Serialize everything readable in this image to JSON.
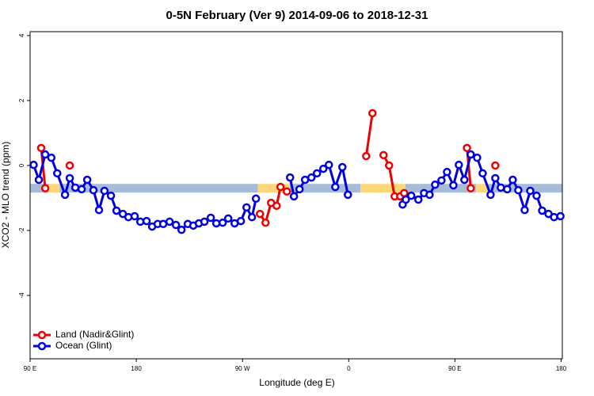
{
  "chart_data": {
    "type": "line",
    "title": "0-5N February (Ver 9)   2014-09-06 to 2018-12-31",
    "xlabel": "Longitude (deg E)",
    "ylabel": "XCO2 - MLO trend (ppm)",
    "xlim": [
      90,
      541
    ],
    "ylim": [
      -5.95,
      4.12
    ],
    "xticks": [
      {
        "value": 90,
        "label": "90 E"
      },
      {
        "value": 180,
        "label": "180"
      },
      {
        "value": 270,
        "label": "90 W"
      },
      {
        "value": 360,
        "label": "0"
      },
      {
        "value": 450,
        "label": "90 E"
      },
      {
        "value": 540,
        "label": "180"
      }
    ],
    "yticks": [
      4,
      2,
      0,
      -2,
      -4
    ],
    "legend": "bottom-left",
    "band": {
      "value": -0.7,
      "segments": [
        {
          "from": 90,
          "to": 106,
          "color": "#a8bcd8"
        },
        {
          "from": 106,
          "to": 115,
          "color": "#fdd87a"
        },
        {
          "from": 115,
          "to": 283,
          "color": "#a8bcd8"
        },
        {
          "from": 283,
          "to": 310,
          "color": "#fdd87a"
        },
        {
          "from": 310,
          "to": 370,
          "color": "#a8bcd8"
        },
        {
          "from": 370,
          "to": 408,
          "color": "#fdd87a"
        },
        {
          "from": 408,
          "to": 468,
          "color": "#a8bcd8"
        },
        {
          "from": 468,
          "to": 478,
          "color": "#fdd87a"
        },
        {
          "from": 478,
          "to": 541,
          "color": "#a8bcd8"
        }
      ]
    },
    "series": [
      {
        "name": "Land (Nadir&Glint)",
        "color": "#ee0000",
        "x": [
          99.4,
          102.8,
          null,
          123.6,
          null,
          284.8,
          289.5,
          294.2,
          298.9,
          302.2,
          307.6,
          null,
          374.8,
          380.1,
          null,
          389.5,
          394.2,
          398.9,
          403.6,
          407,
          null,
          460.2,
          463.4,
          null,
          484.2
        ],
        "values": [
          0.54,
          -0.7,
          null,
          0,
          null,
          -1.49,
          -1.76,
          -1.15,
          -1.24,
          -0.66,
          -0.8,
          null,
          0.29,
          1.61,
          null,
          0.32,
          0,
          -0.95,
          -0.95,
          -0.85,
          null,
          0.54,
          -0.7,
          null,
          0
        ]
      },
      {
        "name": "Ocean (Glint)",
        "color": "#0000dd",
        "x": [
          93,
          97.4,
          102.8,
          108,
          113,
          119.6,
          123.6,
          128.3,
          133.7,
          138.4,
          143.7,
          148.4,
          153,
          158.5,
          163.2,
          168.6,
          173.3,
          178.6,
          183.4,
          188.7,
          193.4,
          198.1,
          202.8,
          208.2,
          213.6,
          218.3,
          223.6,
          228.3,
          233,
          237.7,
          243.1,
          247.8,
          253.2,
          257.9,
          263.3,
          268.6,
          273.4,
          278,
          281.4,
          null,
          310.3,
          313.6,
          318.3,
          323,
          328.4,
          333.1,
          338.5,
          343.2,
          348.6,
          354.6,
          359.3,
          null,
          405.7,
          408.4,
          413,
          419,
          423.8,
          428.5,
          433.2,
          438.6,
          443.3,
          448.7,
          453.3,
          458,
          463.4,
          468.8,
          473.5,
          480.2,
          484.2,
          488.9,
          494.3,
          499,
          503.7,
          509.1,
          513.8,
          519.2,
          523.9,
          529.3,
          534,
          539.4
        ],
        "values": [
          0.02,
          -0.44,
          0.34,
          0.24,
          -0.24,
          -0.9,
          -0.39,
          -0.68,
          -0.73,
          -0.44,
          -0.76,
          -1.37,
          -0.78,
          -0.93,
          -1.39,
          -1.49,
          -1.59,
          -1.56,
          -1.73,
          -1.71,
          -1.88,
          -1.8,
          -1.8,
          -1.73,
          -1.83,
          -1.98,
          -1.8,
          -1.85,
          -1.78,
          -1.73,
          -1.61,
          -1.78,
          -1.76,
          -1.63,
          -1.78,
          -1.71,
          -1.29,
          -1.59,
          -1.02,
          null,
          -0.37,
          -0.95,
          -0.73,
          -0.44,
          -0.37,
          -0.24,
          -0.1,
          0.02,
          -0.66,
          -0.05,
          -0.9,
          null,
          -1.2,
          -1.05,
          -0.93,
          -1.05,
          -0.85,
          -0.9,
          -0.59,
          -0.46,
          -0.2,
          -0.61,
          0.02,
          -0.44,
          0.34,
          0.24,
          -0.24,
          -0.9,
          -0.39,
          -0.68,
          -0.73,
          -0.44,
          -0.76,
          -1.37,
          -0.78,
          -0.93,
          -1.39,
          -1.49,
          -1.59,
          -1.56
        ]
      }
    ]
  }
}
